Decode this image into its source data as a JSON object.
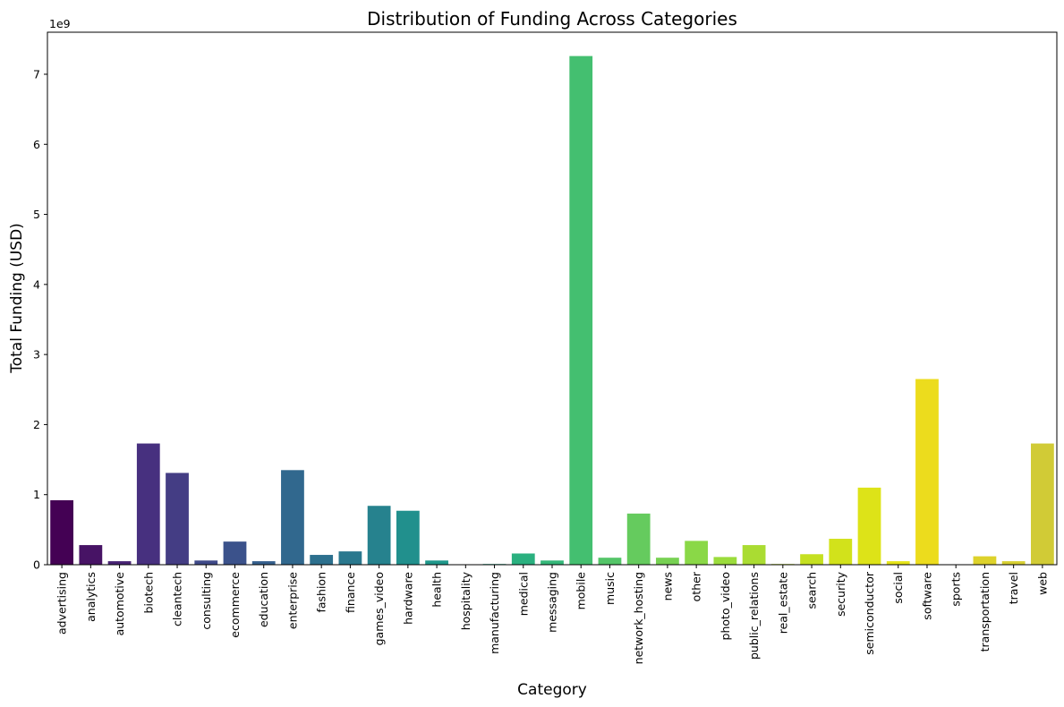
{
  "chart_data": {
    "type": "bar",
    "title": "Distribution of Funding Across Categories",
    "xlabel": "Category",
    "ylabel": "Total Funding (USD)",
    "y_offset_label": "1e9",
    "y_scale": 1000000000,
    "ylim": [
      0,
      7.6
    ],
    "yticks": [
      0,
      1,
      2,
      3,
      4,
      5,
      6,
      7
    ],
    "grid": false,
    "legend": "none",
    "categories": [
      "advertising",
      "analytics",
      "automotive",
      "biotech",
      "cleantech",
      "consulting",
      "ecommerce",
      "education",
      "enterprise",
      "fashion",
      "finance",
      "games_video",
      "hardware",
      "health",
      "hospitality",
      "manufacturing",
      "medical",
      "messaging",
      "mobile",
      "music",
      "network_hosting",
      "news",
      "other",
      "photo_video",
      "public_relations",
      "real_estate",
      "search",
      "security",
      "semiconductor",
      "social",
      "software",
      "sports",
      "transportation",
      "travel",
      "web"
    ],
    "values": [
      0.92,
      0.28,
      0.05,
      1.73,
      1.31,
      0.06,
      0.33,
      0.05,
      1.35,
      0.14,
      0.19,
      0.84,
      0.77,
      0.06,
      0.0,
      0.01,
      0.16,
      0.06,
      7.26,
      0.1,
      0.73,
      0.1,
      0.34,
      0.11,
      0.28,
      0.01,
      0.15,
      0.37,
      1.1,
      0.05,
      2.65,
      0.0,
      0.12,
      0.05,
      1.73
    ],
    "colors": [
      "#440154",
      "#471365",
      "#482374",
      "#47307f",
      "#443d84",
      "#3f4a89",
      "#3b528b",
      "#355f8d",
      "#31688e",
      "#2d708e",
      "#2a788e",
      "#26828e",
      "#21908d",
      "#1f988b",
      "#20a386",
      "#22a884",
      "#2ab07f",
      "#35b779",
      "#44bf70",
      "#54c568",
      "#65cb5e",
      "#77d153",
      "#8ad847",
      "#9bdc3c",
      "#aadc32",
      "#bade28",
      "#c5e021",
      "#d2e21b",
      "#dde318",
      "#e5e419",
      "#ecdc1d",
      "#ead41f",
      "#ddd22b",
      "#d7cf32",
      "#d1cb36"
    ]
  }
}
